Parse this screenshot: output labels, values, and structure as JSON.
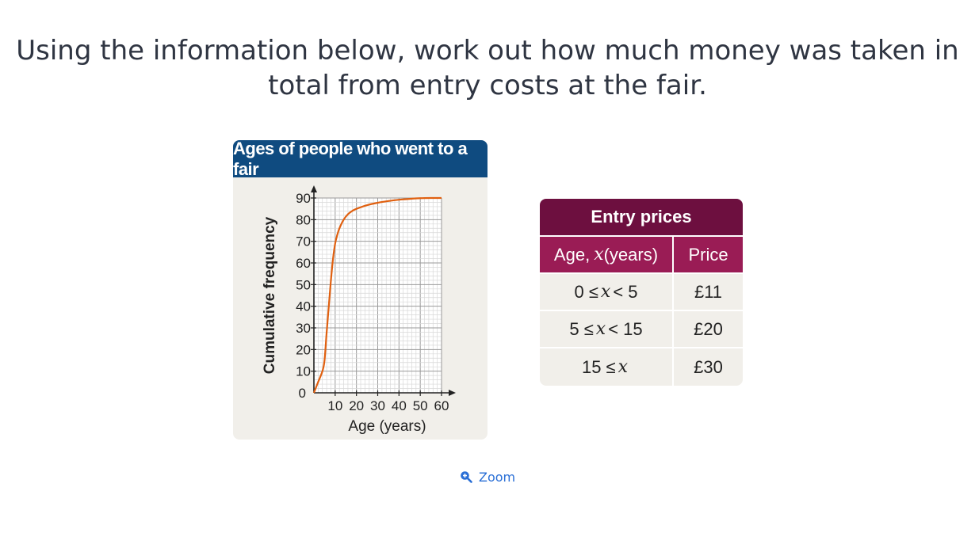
{
  "question": {
    "line1": "Using the information below, work out how much money was taken in",
    "line2": "total from entry costs at the fair."
  },
  "chart": {
    "title": "Ages of people who went to a fair",
    "colors": {
      "header": "#0f4b80",
      "curve": "#e06010",
      "panel": "#f1efea"
    }
  },
  "chart_data": {
    "type": "line",
    "title": "Ages of people who went to a fair",
    "xlabel": "Age (years)",
    "ylabel": "Cumulative frequency",
    "xlim": [
      0,
      60
    ],
    "ylim": [
      0,
      90
    ],
    "x_ticks": [
      "10",
      "20",
      "30",
      "40",
      "50",
      "60"
    ],
    "y_ticks": [
      "10",
      "20",
      "30",
      "40",
      "50",
      "60",
      "70",
      "80",
      "90"
    ],
    "origin_label": "0",
    "grid": true,
    "series": [
      {
        "x": [
          0,
          2,
          4,
          5,
          6,
          7,
          8,
          9,
          10,
          11,
          12,
          14,
          16,
          18,
          20,
          25,
          30,
          35,
          40,
          45,
          50,
          55,
          60
        ],
        "y": [
          0,
          5,
          10,
          15,
          28,
          40,
          52,
          62,
          69,
          73,
          76,
          80,
          82.5,
          84,
          85,
          86.7,
          87.8,
          88.6,
          89.2,
          89.6,
          89.9,
          90,
          90
        ]
      }
    ]
  },
  "table": {
    "title": "Entry prices",
    "header_age_prefix": "Age, ",
    "header_age_var": "x",
    "header_age_suffix": " (years)",
    "header_price": "Price",
    "rows": [
      {
        "left": "0 ≤ ",
        "var": "x",
        "right": " < 5",
        "price": "£11"
      },
      {
        "left": "5 ≤ ",
        "var": "x",
        "right": " < 15",
        "price": "£20"
      },
      {
        "left": "15 ≤ ",
        "var": "x",
        "right": "",
        "price": "£30"
      }
    ],
    "colors": {
      "title": "#6d0f3f",
      "header": "#9a1c55"
    }
  },
  "zoom": {
    "label": "Zoom",
    "icon": "zoom-in-icon"
  }
}
